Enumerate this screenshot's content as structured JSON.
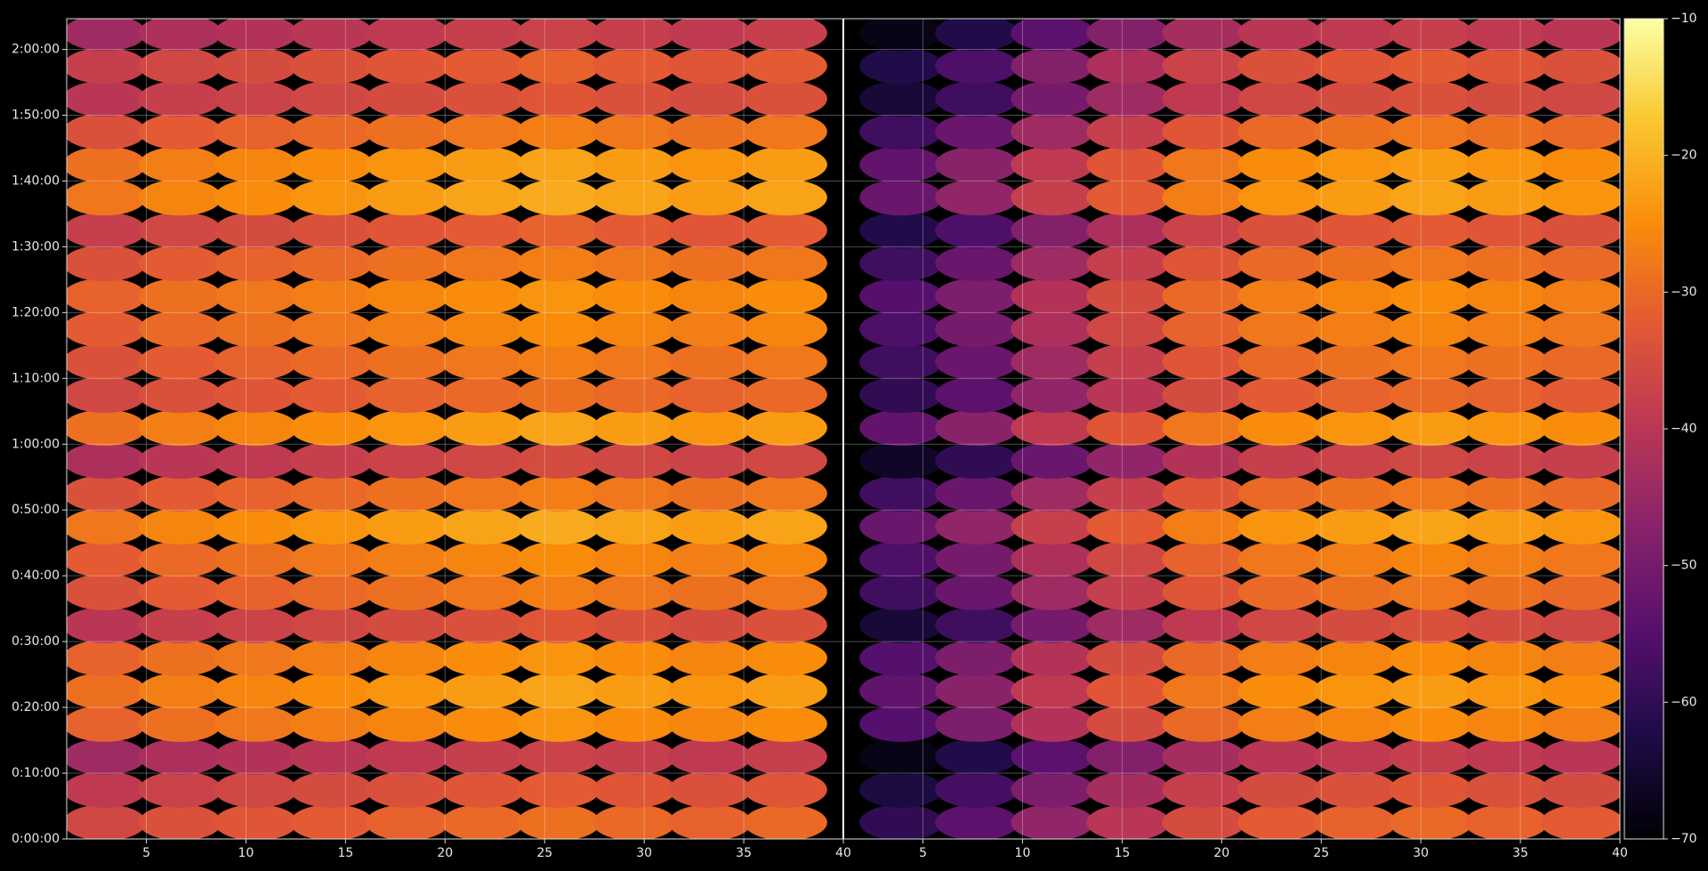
{
  "chart_data": {
    "type": "heatmap",
    "cmap": "inferno",
    "clim": [
      -70,
      -10
    ],
    "grid": true,
    "xlim": [
      1,
      79
    ],
    "ylim": [
      0,
      7480
    ],
    "xticks": [
      5,
      10,
      15,
      20,
      25,
      30,
      35,
      40,
      {
        "value": 44,
        "label": "5"
      },
      {
        "value": 49,
        "label": "10"
      },
      {
        "value": 54,
        "label": "15"
      },
      {
        "value": 59,
        "label": "20"
      },
      {
        "value": 64,
        "label": "25"
      },
      {
        "value": 69,
        "label": "30"
      },
      {
        "value": 74,
        "label": "35"
      },
      {
        "value": 79,
        "label": "40"
      }
    ],
    "yticks": [
      {
        "value": 0,
        "label": "0:00:00"
      },
      {
        "value": 600,
        "label": "0:10:00"
      },
      {
        "value": 1200,
        "label": "0:20:00"
      },
      {
        "value": 1800,
        "label": "0:30:00"
      },
      {
        "value": 2400,
        "label": "0:40:00"
      },
      {
        "value": 3000,
        "label": "0:50:00"
      },
      {
        "value": 3600,
        "label": "1:00:00"
      },
      {
        "value": 4200,
        "label": "1:10:00"
      },
      {
        "value": 4800,
        "label": "1:20:00"
      },
      {
        "value": 5400,
        "label": "1:30:00"
      },
      {
        "value": 6000,
        "label": "1:40:00"
      },
      {
        "value": 6600,
        "label": "1:50:00"
      },
      {
        "value": 7200,
        "label": "2:00:00"
      }
    ],
    "colorbar_ticks": [
      {
        "value": -70,
        "label": "−70"
      },
      {
        "value": -60,
        "label": "−60"
      },
      {
        "value": -50,
        "label": "−50"
      },
      {
        "value": -40,
        "label": "−40"
      },
      {
        "value": -30,
        "label": "−30"
      },
      {
        "value": -20,
        "label": "−20"
      },
      {
        "value": -10,
        "label": "−10"
      }
    ],
    "x": [
      2.9,
      6.7,
      10.5,
      14.3,
      18.1,
      21.9,
      25.7,
      29.5,
      33.3,
      37.1,
      42.9,
      46.7,
      50.5,
      54.3,
      58.1,
      61.9,
      65.7,
      69.5,
      73.3,
      77.1
    ],
    "y": [
      150,
      450,
      750,
      1050,
      1350,
      1650,
      1950,
      2250,
      2550,
      2850,
      3150,
      3450,
      3750,
      4050,
      4350,
      4650,
      4950,
      5250,
      5550,
      5850,
      6150,
      6450,
      6750,
      7050,
      7350
    ],
    "z": [
      [
        -36,
        -34,
        -33,
        -32,
        -31,
        -30,
        -29,
        -30,
        -31,
        -30,
        -60,
        -54,
        -46,
        -40,
        -35,
        -32,
        -31,
        -30,
        -31,
        -32
      ],
      [
        -39,
        -37,
        -36,
        -35,
        -34,
        -33,
        -32,
        -33,
        -34,
        -33,
        -63,
        -57,
        -49,
        -43,
        -38,
        -35,
        -34,
        -33,
        -34,
        -35
      ],
      [
        -44,
        -42,
        -41,
        -40,
        -39,
        -38,
        -37,
        -38,
        -39,
        -38,
        -68,
        -62,
        -54,
        -48,
        -43,
        -40,
        -39,
        -38,
        -39,
        -40
      ],
      [
        -31,
        -29,
        -28,
        -27,
        -26,
        -25,
        -24,
        -25,
        -26,
        -25,
        -55,
        -49,
        -41,
        -35,
        -30,
        -27,
        -26,
        -25,
        -26,
        -27
      ],
      [
        -29,
        -27,
        -26,
        -25,
        -24,
        -23,
        -22,
        -23,
        -24,
        -23,
        -53,
        -47,
        -39,
        -33,
        -28,
        -25,
        -24,
        -23,
        -24,
        -25
      ],
      [
        -31,
        -29,
        -28,
        -27,
        -26,
        -25,
        -24,
        -25,
        -26,
        -25,
        -55,
        -49,
        -41,
        -35,
        -30,
        -27,
        -26,
        -25,
        -26,
        -27
      ],
      [
        -40,
        -38,
        -37,
        -36,
        -35,
        -34,
        -33,
        -34,
        -35,
        -34,
        -64,
        -58,
        -50,
        -44,
        -39,
        -36,
        -35,
        -34,
        -35,
        -36
      ],
      [
        -34,
        -32,
        -31,
        -30,
        -29,
        -28,
        -27,
        -28,
        -29,
        -28,
        -58,
        -52,
        -44,
        -38,
        -33,
        -30,
        -29,
        -28,
        -29,
        -30
      ],
      [
        -32,
        -30,
        -29,
        -28,
        -27,
        -26,
        -25,
        -26,
        -27,
        -26,
        -56,
        -50,
        -42,
        -36,
        -31,
        -28,
        -27,
        -26,
        -27,
        -28
      ],
      [
        -28,
        -26,
        -25,
        -24,
        -23,
        -22,
        -21,
        -22,
        -23,
        -22,
        -52,
        -46,
        -38,
        -32,
        -27,
        -24,
        -23,
        -22,
        -23,
        -24
      ],
      [
        -34,
        -32,
        -31,
        -30,
        -29,
        -28,
        -27,
        -28,
        -29,
        -28,
        -58,
        -52,
        -44,
        -38,
        -33,
        -30,
        -29,
        -28,
        -29,
        -30
      ],
      [
        -42,
        -40,
        -39,
        -38,
        -37,
        -36,
        -35,
        -36,
        -37,
        -36,
        -66,
        -60,
        -52,
        -46,
        -41,
        -38,
        -37,
        -36,
        -37,
        -38
      ],
      [
        -29,
        -27,
        -26,
        -25,
        -24,
        -23,
        -22,
        -23,
        -24,
        -23,
        -53,
        -47,
        -39,
        -33,
        -28,
        -25,
        -24,
        -23,
        -24,
        -25
      ],
      [
        -36,
        -34,
        -33,
        -32,
        -31,
        -30,
        -29,
        -30,
        -31,
        -30,
        -60,
        -54,
        -46,
        -40,
        -35,
        -32,
        -31,
        -30,
        -31,
        -32
      ],
      [
        -34,
        -32,
        -31,
        -30,
        -29,
        -28,
        -27,
        -28,
        -29,
        -28,
        -58,
        -52,
        -44,
        -38,
        -33,
        -30,
        -29,
        -28,
        -29,
        -30
      ],
      [
        -32,
        -30,
        -29,
        -28,
        -27,
        -26,
        -25,
        -26,
        -27,
        -26,
        -56,
        -50,
        -42,
        -36,
        -31,
        -28,
        -27,
        -26,
        -27,
        -28
      ],
      [
        -31,
        -29,
        -28,
        -27,
        -26,
        -25,
        -24,
        -25,
        -26,
        -25,
        -55,
        -49,
        -41,
        -35,
        -30,
        -27,
        -26,
        -25,
        -26,
        -27
      ],
      [
        -34,
        -32,
        -31,
        -30,
        -29,
        -28,
        -27,
        -28,
        -29,
        -28,
        -58,
        -52,
        -44,
        -38,
        -33,
        -30,
        -29,
        -28,
        -29,
        -30
      ],
      [
        -38,
        -36,
        -35,
        -34,
        -33,
        -32,
        -31,
        -32,
        -33,
        -32,
        -62,
        -56,
        -48,
        -42,
        -37,
        -34,
        -33,
        -32,
        -33,
        -34
      ],
      [
        -28,
        -26,
        -25,
        -24,
        -23,
        -22,
        -21,
        -22,
        -23,
        -22,
        -52,
        -46,
        -38,
        -32,
        -27,
        -24,
        -23,
        -22,
        -23,
        -24
      ],
      [
        -29,
        -27,
        -26,
        -25,
        -24,
        -23,
        -22,
        -23,
        -24,
        -23,
        -53,
        -47,
        -39,
        -33,
        -28,
        -25,
        -24,
        -23,
        -24,
        -25
      ],
      [
        -34,
        -32,
        -31,
        -30,
        -29,
        -28,
        -27,
        -28,
        -29,
        -28,
        -58,
        -52,
        -44,
        -38,
        -33,
        -30,
        -29,
        -28,
        -29,
        -30
      ],
      [
        -40,
        -38,
        -37,
        -36,
        -35,
        -34,
        -33,
        -34,
        -35,
        -34,
        -64,
        -58,
        -50,
        -44,
        -39,
        -36,
        -35,
        -34,
        -35,
        -36
      ],
      [
        -38,
        -36,
        -35,
        -34,
        -33,
        -32,
        -31,
        -32,
        -33,
        -32,
        -62,
        -56,
        -48,
        -42,
        -37,
        -34,
        -33,
        -32,
        -33,
        -34
      ],
      [
        -44,
        -42,
        -41,
        -40,
        -39,
        -38,
        -37,
        -38,
        -39,
        -38,
        -68,
        -62,
        -54,
        -48,
        -43,
        -40,
        -39,
        -38,
        -39,
        -40
      ]
    ]
  }
}
